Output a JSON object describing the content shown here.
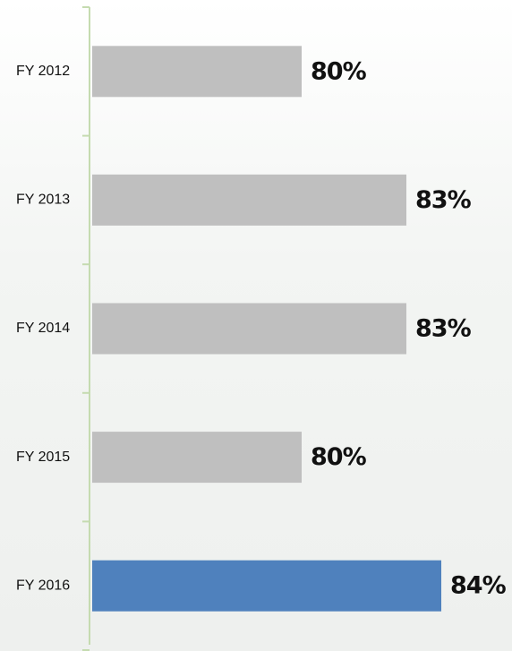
{
  "chart_data": {
    "type": "hbar",
    "categories": [
      "FY 2012",
      "FY 2013",
      "FY 2014",
      "FY 2015",
      "FY 2016"
    ],
    "values": [
      80,
      83,
      83,
      80,
      84
    ],
    "value_labels": [
      "80%",
      "83%",
      "83%",
      "80%",
      "84%"
    ],
    "colors": [
      "#bfbfbf",
      "#bfbfbf",
      "#bfbfbf",
      "#bfbfbf",
      "#4f81bd"
    ],
    "xlim": [
      74,
      86
    ]
  }
}
